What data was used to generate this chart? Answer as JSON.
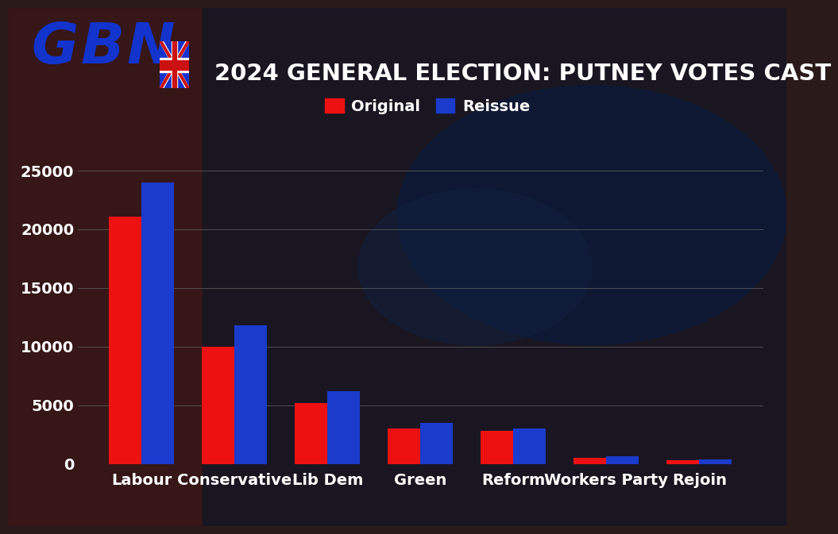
{
  "title": "2024 GENERAL ELECTION: PUTNEY VOTES CAST",
  "categories": [
    "Labour",
    "Conservative",
    "Lib Dem",
    "Green",
    "Reform",
    "Workers Party",
    "Rejoin"
  ],
  "original": [
    21050,
    10000,
    5200,
    3000,
    2800,
    500,
    300
  ],
  "reissue": [
    24000,
    11800,
    6200,
    3500,
    3000,
    620,
    400
  ],
  "original_color": "#ee1111",
  "reissue_color": "#1a3bcc",
  "bg_color": "#2a1a1a",
  "text_color": "#ffffff",
  "title_color": "#ffffff",
  "grid_color": "#666666",
  "yticks": [
    0,
    5000,
    10000,
    15000,
    20000,
    25000
  ],
  "ylim": [
    0,
    26500
  ],
  "bar_width": 0.35,
  "legend_labels": [
    "Original",
    "Reissue"
  ],
  "title_fontsize": 21,
  "tick_fontsize": 14,
  "label_fontsize": 14,
  "legend_fontsize": 14,
  "gbn_blue": "#1233cc",
  "gbn_red": "#cc1111"
}
